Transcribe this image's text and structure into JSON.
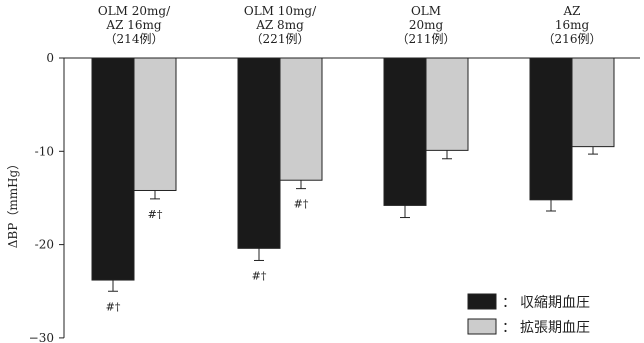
{
  "chart_data": {
    "type": "bar",
    "categories": [
      [
        "OLM 20mg/",
        "AZ 16mg",
        "（214例）"
      ],
      [
        "OLM 10mg/",
        "AZ 8mg",
        "（221例）"
      ],
      [
        "OLM",
        "20mg",
        "（211例）"
      ],
      [
        "AZ",
        "16mg",
        "（216例）"
      ]
    ],
    "series": [
      {
        "name": "収縮期血圧",
        "color": "#1a1a1a",
        "values": [
          -23.8,
          -20.4,
          -15.8,
          -15.2
        ],
        "error": [
          1.2,
          1.3,
          1.3,
          1.2
        ],
        "annotations": [
          "#†",
          "#†",
          "",
          ""
        ]
      },
      {
        "name": "拡張期血圧",
        "color": "#cccccc",
        "values": [
          -14.2,
          -13.1,
          -9.9,
          -9.5
        ],
        "error": [
          0.9,
          0.9,
          0.9,
          0.8
        ],
        "annotations": [
          "#†",
          "#†",
          "",
          ""
        ]
      }
    ],
    "ylabel": "ΔBP（mmHg）",
    "ylim": [
      -30,
      0
    ],
    "yticks": [
      0,
      -10,
      -20,
      -30
    ],
    "yticklabels": [
      "0",
      "-10",
      "-20",
      "−30"
    ],
    "legend_position": "bottom-right",
    "legend_markers": [
      "■",
      "□"
    ],
    "legend_separator": "："
  }
}
